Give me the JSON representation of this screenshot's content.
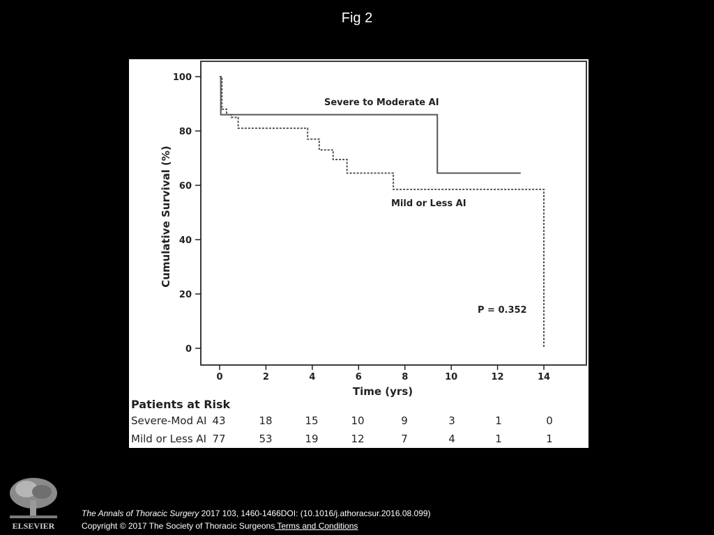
{
  "slide": {
    "title": "Fig 2"
  },
  "chart_data": {
    "type": "line",
    "subtype": "kaplan-meier",
    "title": "",
    "xlabel": "Time (yrs)",
    "ylabel": "Cumulative Survival (%)",
    "xlim": [
      0,
      14
    ],
    "ylim": [
      0,
      100
    ],
    "xticks": [
      0,
      2,
      4,
      6,
      8,
      10,
      12,
      14
    ],
    "yticks": [
      0,
      20,
      40,
      60,
      80,
      100
    ],
    "grid": false,
    "annotation": "P = 0.352",
    "series": [
      {
        "name": "Severe to Moderate AI",
        "style": "solid",
        "color": "#555555",
        "x": [
          0,
          0.05,
          9.4,
          9.4,
          13
        ],
        "y": [
          100,
          86,
          86,
          64.5,
          64.5
        ]
      },
      {
        "name": "Mild or Less AI",
        "style": "dotted",
        "color": "#555555",
        "x": [
          0,
          0.1,
          0.3,
          0.5,
          0.8,
          3.5,
          3.8,
          4.3,
          4.9,
          5.5,
          7.5,
          14.0,
          14.0
        ],
        "y": [
          100,
          88,
          86,
          85,
          81,
          81,
          77,
          73,
          69.5,
          64.5,
          58.5,
          58.5,
          0
        ]
      }
    ]
  },
  "risk_table": {
    "title": "Patients at Risk",
    "rows": [
      {
        "label": "Severe-Mod AI",
        "values": [
          "43",
          "18",
          "15",
          "10",
          "9",
          "3",
          "1",
          "0"
        ]
      },
      {
        "label": "Mild or Less AI",
        "values": [
          "77",
          "53",
          "19",
          "12",
          "7",
          "4",
          "1",
          "1"
        ]
      }
    ]
  },
  "footer": {
    "journal": "The Annals of Thoracic Surgery",
    "citation": " 2017 103, 1460-1466DOI: (10.1016/j.athoracsur.2016.08.099)",
    "copyright": "Copyright © 2017 The Society of Thoracic Surgeons",
    "terms_link": " Terms and Conditions"
  },
  "logo": {
    "icon": "elsevier-tree-logo",
    "text": "ELSEVIER"
  }
}
